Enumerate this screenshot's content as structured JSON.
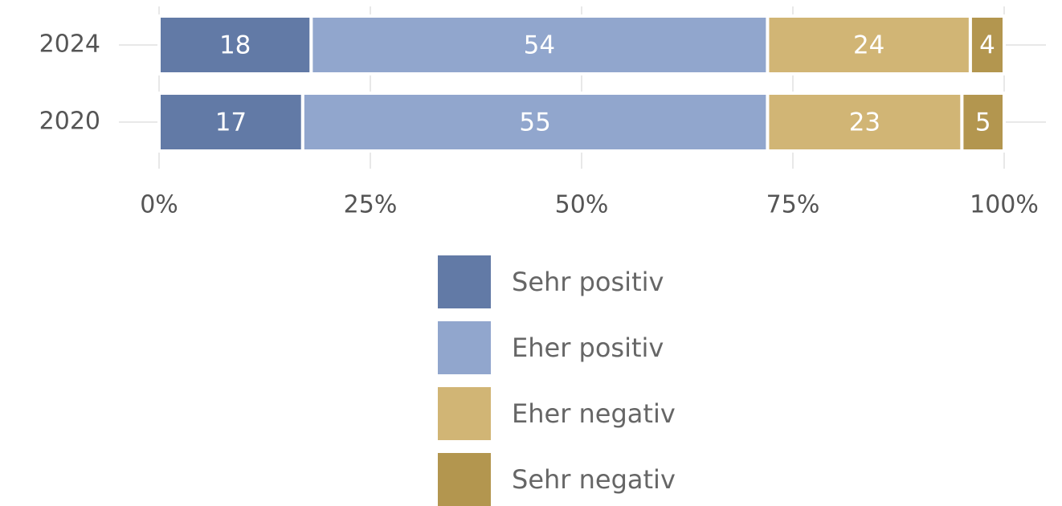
{
  "chart_data": {
    "type": "bar",
    "orientation": "horizontal",
    "stacked": true,
    "categories": [
      "2024",
      "2020"
    ],
    "series": [
      {
        "name": "Sehr positiv",
        "color": "#627aa6",
        "values": [
          18,
          17
        ]
      },
      {
        "name": "Eher positiv",
        "color": "#91a6cd",
        "values": [
          54,
          55
        ]
      },
      {
        "name": "Eher negativ",
        "color": "#d1b575",
        "values": [
          24,
          23
        ]
      },
      {
        "name": "Sehr negativ",
        "color": "#b3964f",
        "values": [
          4,
          5
        ]
      }
    ],
    "xlim": [
      0,
      100
    ],
    "xticks": [
      {
        "value": 0,
        "label": "0%"
      },
      {
        "value": 25,
        "label": "25%"
      },
      {
        "value": 50,
        "label": "50%"
      },
      {
        "value": 75,
        "label": "75%"
      },
      {
        "value": 100,
        "label": "100%"
      }
    ],
    "grid": true,
    "legend": "bottom"
  }
}
